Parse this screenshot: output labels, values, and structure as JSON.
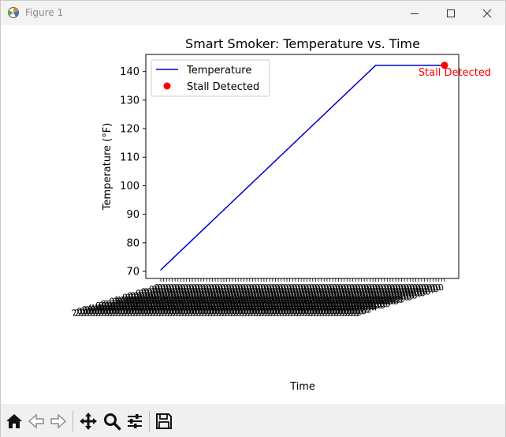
{
  "window": {
    "title": "Figure 1"
  },
  "toolbar": {
    "buttons": [
      {
        "name": "home-icon",
        "label": "Home"
      },
      {
        "name": "back-arrow-icon",
        "label": "Back"
      },
      {
        "name": "forward-arrow-icon",
        "label": "Forward"
      },
      {
        "name": "pan-icon",
        "label": "Pan"
      },
      {
        "name": "zoom-icon",
        "label": "Zoom"
      },
      {
        "name": "configure-subplots-icon",
        "label": "Subplots"
      },
      {
        "name": "save-icon",
        "label": "Save"
      }
    ]
  },
  "chart_data": {
    "type": "line",
    "title": "Smart Smoker: Temperature vs. Time",
    "xlabel": "Time",
    "ylabel": "Temperature (°F)",
    "ylim": [
      67.5,
      146
    ],
    "yticks": [
      70,
      80,
      90,
      100,
      110,
      120,
      130,
      140
    ],
    "x_points": 100,
    "series": [
      {
        "name": "Temperature",
        "color": "#0000cc",
        "ramp_start": 70.5,
        "ramp_end": 142.2,
        "ramp_until_index": 75
      }
    ],
    "marker": {
      "name": "Stall Detected",
      "color": "#ff0000",
      "index": 99,
      "value": 142.2
    },
    "annotation": {
      "text": "Stall Detected",
      "color": "#ff0000"
    },
    "legend_placement": "upper-left",
    "grid": false
  }
}
